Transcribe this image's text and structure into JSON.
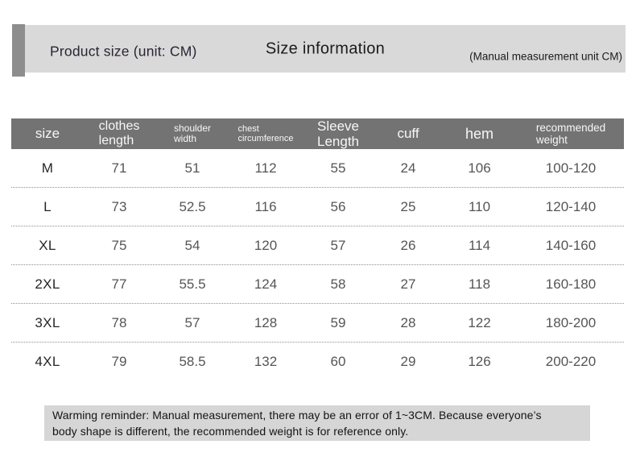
{
  "banner": {
    "left_title": "Product size (unit: CM)",
    "center_title": "Size information",
    "right_note": "(Manual measurement unit CM)"
  },
  "table": {
    "columns": [
      {
        "key": "size",
        "lines": [
          "size"
        ]
      },
      {
        "key": "clothes-length",
        "lines": [
          "clothes",
          "length"
        ]
      },
      {
        "key": "shoulder-width",
        "lines": [
          "shoulder",
          "width"
        ]
      },
      {
        "key": "chest-circumference",
        "lines": [
          "chest",
          "circumference"
        ]
      },
      {
        "key": "sleeve-length",
        "lines": [
          "Sleeve",
          "Length"
        ]
      },
      {
        "key": "cuff",
        "lines": [
          "cuff"
        ]
      },
      {
        "key": "hem",
        "lines": [
          "hem"
        ]
      },
      {
        "key": "recommended-weight",
        "lines": [
          "recommended",
          "weight"
        ]
      }
    ],
    "rows": [
      [
        "M",
        "71",
        "51",
        "112",
        "55",
        "24",
        "106",
        "100-120"
      ],
      [
        "L",
        "73",
        "52.5",
        "116",
        "56",
        "25",
        "110",
        "120-140"
      ],
      [
        "XL",
        "75",
        "54",
        "120",
        "57",
        "26",
        "114",
        "140-160"
      ],
      [
        "2XL",
        "77",
        "55.5",
        "124",
        "58",
        "27",
        "118",
        "160-180"
      ],
      [
        "3XL",
        "78",
        "57",
        "128",
        "59",
        "28",
        "122",
        "180-200"
      ],
      [
        "4XL",
        "79",
        "58.5",
        "132",
        "60",
        "29",
        "126",
        "200-220"
      ]
    ]
  },
  "footer": {
    "lines": [
      "Warming reminder: Manual measurement, there may be an error of 1~3CM. Because everyone’s",
      "body shape is different, the recommended weight is for reference only."
    ]
  },
  "colors": {
    "banner_bg": "#d9d9d9",
    "accent_bar": "#8d8d8d",
    "table_header_bg": "#737373",
    "table_header_text": "#f7f7f7",
    "row_text": "#555555",
    "size_text": "#262626",
    "footer_bg": "#d6d6d6",
    "dotted_line": "#8f8f8f"
  },
  "chart_data": {
    "type": "table",
    "title": "Size information",
    "subtitle": "Product size (unit: CM)",
    "note": "(Manual measurement unit CM)",
    "columns": [
      "size",
      "clothes length",
      "shoulder width",
      "chest circumference",
      "Sleeve Length",
      "cuff",
      "hem",
      "recommended weight"
    ],
    "rows": [
      {
        "size": "M",
        "clothes_length": 71,
        "shoulder_width": 51,
        "chest_circumference": 112,
        "sleeve_length": 55,
        "cuff": 24,
        "hem": 106,
        "recommended_weight": "100-120"
      },
      {
        "size": "L",
        "clothes_length": 73,
        "shoulder_width": 52.5,
        "chest_circumference": 116,
        "sleeve_length": 56,
        "cuff": 25,
        "hem": 110,
        "recommended_weight": "120-140"
      },
      {
        "size": "XL",
        "clothes_length": 75,
        "shoulder_width": 54,
        "chest_circumference": 120,
        "sleeve_length": 57,
        "cuff": 26,
        "hem": 114,
        "recommended_weight": "140-160"
      },
      {
        "size": "2XL",
        "clothes_length": 77,
        "shoulder_width": 55.5,
        "chest_circumference": 124,
        "sleeve_length": 58,
        "cuff": 27,
        "hem": 118,
        "recommended_weight": "160-180"
      },
      {
        "size": "3XL",
        "clothes_length": 78,
        "shoulder_width": 57,
        "chest_circumference": 128,
        "sleeve_length": 59,
        "cuff": 28,
        "hem": 122,
        "recommended_weight": "180-200"
      },
      {
        "size": "4XL",
        "clothes_length": 79,
        "shoulder_width": 58.5,
        "chest_circumference": 132,
        "sleeve_length": 60,
        "cuff": 29,
        "hem": 126,
        "recommended_weight": "200-220"
      }
    ],
    "units": "CM",
    "warning": "Warming reminder: Manual measurement, there may be an error of 1~3CM. Because everyone’s body shape is different, the recommended weight is for reference only."
  }
}
